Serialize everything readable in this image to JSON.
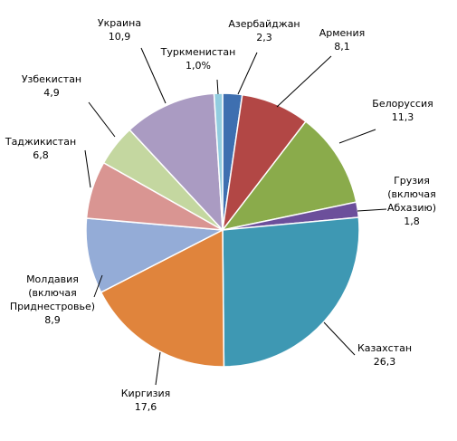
{
  "chart_data": {
    "type": "pie",
    "legend": "none",
    "slices": [
      {
        "label": [
          "Азербайджан"
        ],
        "value_text": "2,3",
        "value": 2.3,
        "color": "#3e6fb0"
      },
      {
        "label": [
          "Армения"
        ],
        "value_text": "8,1",
        "value": 8.1,
        "color": "#b24745"
      },
      {
        "label": [
          "Белоруссия"
        ],
        "value_text": "11,3",
        "value": 11.3,
        "color": "#8aab4b"
      },
      {
        "label": [
          "Грузия",
          "(включая",
          "Абхазию)"
        ],
        "value_text": "1,8",
        "value": 1.8,
        "color": "#6c4f9b"
      },
      {
        "label": [
          "Казахстан"
        ],
        "value_text": "26,3",
        "value": 26.3,
        "color": "#3e98b3"
      },
      {
        "label": [
          "Киргизия"
        ],
        "value_text": "17,6",
        "value": 17.6,
        "color": "#e0843c"
      },
      {
        "label": [
          "Молдавия",
          "(включая",
          "Приднестровье)"
        ],
        "value_text": "8,9",
        "value": 8.9,
        "color": "#94acd7"
      },
      {
        "label": [
          "Таджикистан"
        ],
        "value_text": "6,8",
        "value": 6.8,
        "color": "#d99592"
      },
      {
        "label": [
          "Узбекистан"
        ],
        "value_text": "4,9",
        "value": 4.9,
        "color": "#c4d7a0"
      },
      {
        "label": [
          "Украина"
        ],
        "value_text": "10,9",
        "value": 10.9,
        "color": "#aa9bc2"
      },
      {
        "label": [
          "Туркменистан"
        ],
        "value_text": "1,0%",
        "value": 1.0,
        "color": "#92cde0"
      }
    ]
  }
}
